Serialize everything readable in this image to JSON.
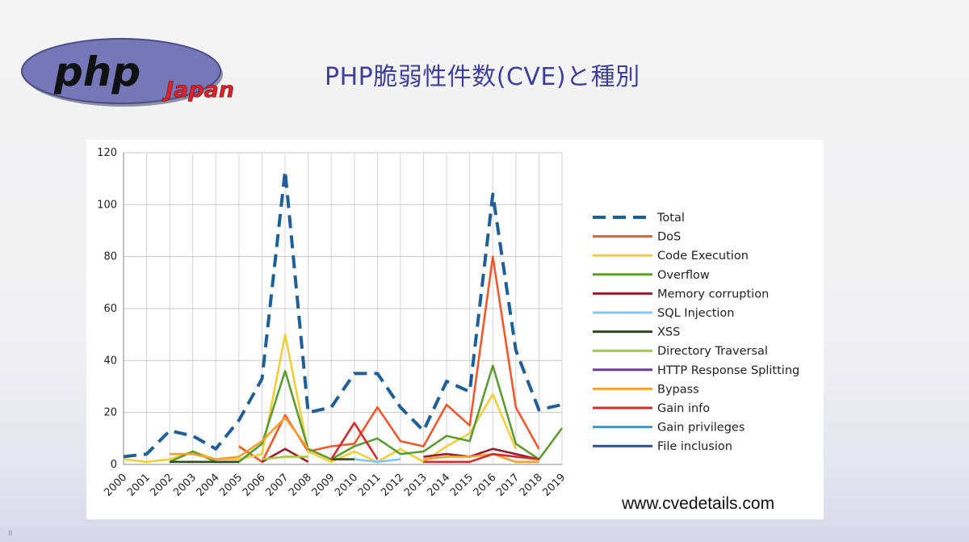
{
  "slide": {
    "title": "PHP脆弱性件数(CVE)と種別",
    "source": "www.cvedetails.com",
    "logo": {
      "main_text": "php",
      "sub_text": "Japan"
    },
    "corner_mark": "II"
  },
  "colors": {
    "title": "#3f3f9f",
    "logo_fill": "#7677b8",
    "logo_sub": "#d9232a"
  },
  "chart_data": {
    "type": "line",
    "title": "",
    "xlabel": "",
    "ylabel": "",
    "ylim": [
      0,
      120
    ],
    "yticks": [
      0,
      20,
      40,
      60,
      80,
      100,
      120
    ],
    "grid": true,
    "legend_position": "right",
    "categories": [
      "2000",
      "2001",
      "2002",
      "2003",
      "2004",
      "2005",
      "2006",
      "2007",
      "2008",
      "2009",
      "2010",
      "2011",
      "2012",
      "2013",
      "2014",
      "2015",
      "2016",
      "2017",
      "2018",
      "2019"
    ],
    "series": [
      {
        "name": "Total",
        "color": "#1f5f99",
        "dashed": true,
        "values": [
          3,
          4,
          13,
          11,
          6,
          17,
          33,
          113,
          20,
          22,
          35,
          35,
          22,
          13,
          32,
          28,
          104,
          44,
          21,
          23
        ]
      },
      {
        "name": "DoS",
        "color": "#f4572a",
        "values": [
          null,
          null,
          null,
          null,
          null,
          7,
          1,
          19,
          5,
          7,
          8,
          22,
          9,
          7,
          23,
          15,
          80,
          22,
          6,
          null
        ]
      },
      {
        "name": "Code Execution",
        "color": "#f4cd3a",
        "values": [
          2,
          1,
          2,
          5,
          2,
          2,
          4,
          50,
          5,
          1,
          5,
          1,
          6,
          1,
          7,
          12,
          27,
          6,
          null,
          null
        ]
      },
      {
        "name": "Overflow",
        "color": "#5a9c32",
        "values": [
          null,
          null,
          1,
          5,
          1,
          1,
          8,
          36,
          6,
          2,
          7,
          10,
          4,
          5,
          11,
          9,
          38,
          8,
          2,
          14
        ]
      },
      {
        "name": "Memory corruption",
        "color": "#9a1b2e",
        "values": [
          null,
          null,
          null,
          null,
          null,
          null,
          1,
          6,
          1,
          null,
          null,
          null,
          null,
          3,
          4,
          3,
          6,
          4,
          2,
          null
        ]
      },
      {
        "name": "SQL Injection",
        "color": "#84c7ee",
        "values": [
          null,
          null,
          null,
          null,
          null,
          null,
          null,
          null,
          null,
          null,
          2,
          1,
          2,
          null,
          null,
          null,
          null,
          null,
          null,
          null
        ]
      },
      {
        "name": "XSS",
        "color": "#2f4a1e",
        "values": [
          null,
          null,
          1,
          1,
          1,
          1,
          null,
          null,
          null,
          2,
          2,
          null,
          null,
          null,
          null,
          null,
          null,
          null,
          null,
          null
        ]
      },
      {
        "name": "Directory Traversal",
        "color": "#a6c842",
        "values": [
          null,
          null,
          null,
          null,
          null,
          null,
          2,
          3,
          3,
          null,
          null,
          null,
          null,
          null,
          null,
          null,
          null,
          null,
          null,
          null
        ]
      },
      {
        "name": "HTTP Response Splitting",
        "color": "#6b3d99",
        "values": [
          null,
          null,
          null,
          null,
          null,
          null,
          null,
          null,
          null,
          null,
          null,
          null,
          null,
          null,
          null,
          null,
          null,
          null,
          null,
          null
        ]
      },
      {
        "name": "Bypass",
        "color": "#f3a030",
        "values": [
          null,
          null,
          4,
          4,
          2,
          3,
          9,
          18,
          6,
          null,
          null,
          null,
          null,
          2,
          3,
          3,
          4,
          1,
          1,
          null
        ]
      },
      {
        "name": "Gain info",
        "color": "#d82b2b",
        "values": [
          null,
          null,
          null,
          null,
          null,
          null,
          null,
          null,
          null,
          2,
          16,
          2,
          null,
          1,
          1,
          1,
          4,
          3,
          2,
          null
        ]
      },
      {
        "name": "Gain privileges",
        "color": "#2a9fd8",
        "values": [
          null,
          null,
          null,
          null,
          null,
          null,
          null,
          null,
          null,
          null,
          null,
          null,
          null,
          null,
          null,
          null,
          null,
          null,
          null,
          null
        ]
      },
      {
        "name": "File inclusion",
        "color": "#2a4f8a",
        "values": [
          null,
          null,
          null,
          null,
          null,
          null,
          null,
          null,
          null,
          null,
          null,
          null,
          null,
          null,
          null,
          null,
          null,
          null,
          null,
          null
        ]
      }
    ]
  }
}
